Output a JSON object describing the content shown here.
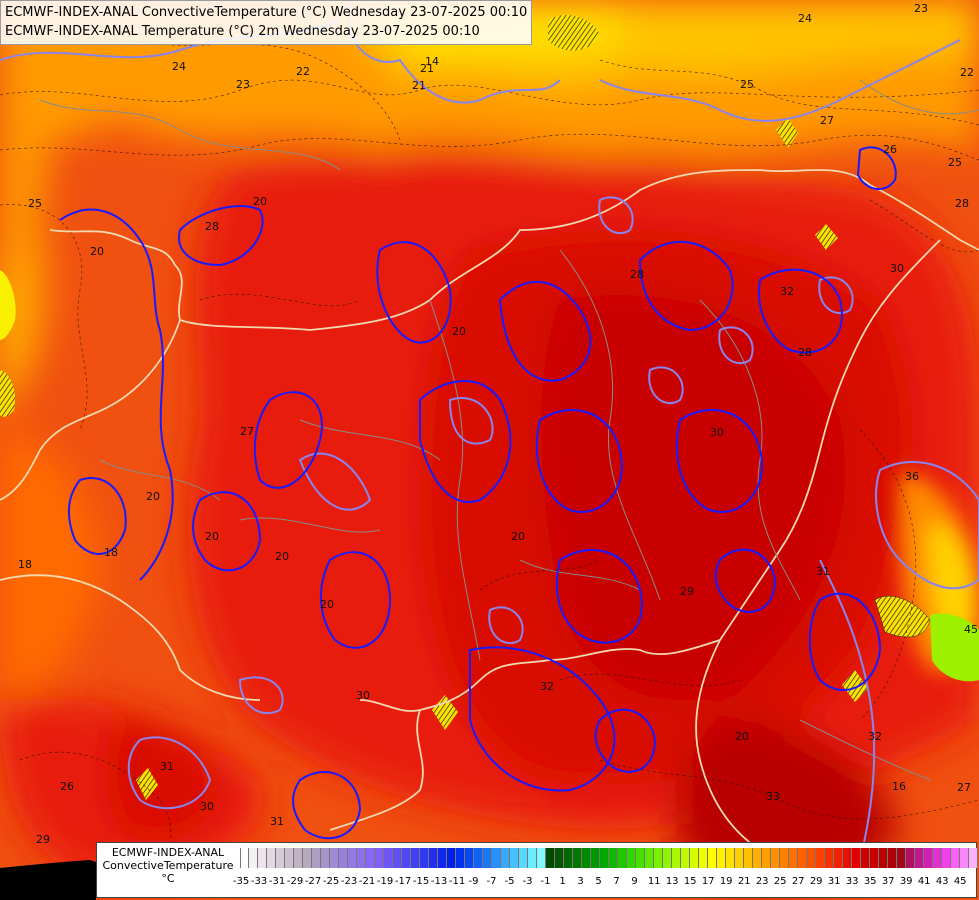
{
  "title_lines": [
    "ECMWF-INDEX-ANAL ConvectiveTemperature (°C) Wednesday 23-07-2025 00:10",
    "ECMWF-INDEX-ANAL Temperature (°C) 2m Wednesday 23-07-2025 00:10"
  ],
  "legend": {
    "caption": [
      "ECMWF-INDEX-ANAL",
      "ConvectiveTemperature",
      "°C"
    ],
    "tick_labels": [
      "-35",
      "-33",
      "-31",
      "-29",
      "-27",
      "-25",
      "-23",
      "-21",
      "-19",
      "-17",
      "-15",
      "-13",
      "-11",
      "-9",
      "-7",
      "-5",
      "-3",
      "-1",
      "1",
      "3",
      "5",
      "7",
      "9",
      "11",
      "13",
      "15",
      "17",
      "19",
      "21",
      "23",
      "25",
      "27",
      "29",
      "31",
      "33",
      "35",
      "37",
      "39",
      "41",
      "43",
      "45"
    ],
    "swatch_colors": [
      "#ffffff",
      "#f4f0f4",
      "#ebe4ec",
      "#e1d8e3",
      "#d6cbd9",
      "#cbbfce",
      "#c0b2c3",
      "#b8a8c0",
      "#ad9ec4",
      "#a694cc",
      "#a08ad6",
      "#9a80de",
      "#9478e6",
      "#8e70ee",
      "#8868f4",
      "#8060f8",
      "#7058f8",
      "#6050f6",
      "#5048f4",
      "#4040f2",
      "#3038f0",
      "#2030ee",
      "#1028ec",
      "#0020ea",
      "#0030f0",
      "#0848f2",
      "#1060f4",
      "#1878f6",
      "#2890f8",
      "#38a8fa",
      "#48c0fc",
      "#58d8fe",
      "#68ecff",
      "#80f8ff",
      "#004800",
      "#005800",
      "#006800",
      "#007800",
      "#008800",
      "#009800",
      "#00a800",
      "#10b800",
      "#20c800",
      "#30d800",
      "#48e000",
      "#60e800",
      "#78f000",
      "#90f400",
      "#a8f800",
      "#c0fa00",
      "#d8fc00",
      "#eefe00",
      "#ffff00",
      "#fff000",
      "#ffe000",
      "#ffd000",
      "#ffc000",
      "#ffb000",
      "#ffa000",
      "#ff9000",
      "#ff8000",
      "#ff7000",
      "#ff6000",
      "#ff5000",
      "#ff4000",
      "#f83000",
      "#f02000",
      "#e81000",
      "#e00000",
      "#d00000",
      "#c40000",
      "#b80000",
      "#ac0008",
      "#a00818",
      "#b01060",
      "#c01890",
      "#d020b0",
      "#e030d0",
      "#f040e8",
      "#f860f8",
      "#fb88fb",
      "#fcb0fc"
    ]
  },
  "contour_labels": [
    "24",
    "22",
    "23",
    "21",
    "14",
    "24",
    "23",
    "22",
    "25",
    "20",
    "25",
    "27",
    "26",
    "25",
    "28",
    "28",
    "20",
    "28",
    "30",
    "32",
    "20",
    "28",
    "30",
    "29",
    "27",
    "20",
    "20",
    "18",
    "20",
    "18",
    "30",
    "20",
    "32",
    "31",
    "36",
    "20",
    "31",
    "45",
    "27",
    "31",
    "29",
    "26",
    "30",
    "20",
    "33",
    "16",
    "32",
    "21"
  ],
  "colors": {
    "contour_temperature": "#1a1aff",
    "contour_convective": "#8a84ee",
    "border_line": "#f2d8b0",
    "admin_line": "#8a8a8a"
  }
}
